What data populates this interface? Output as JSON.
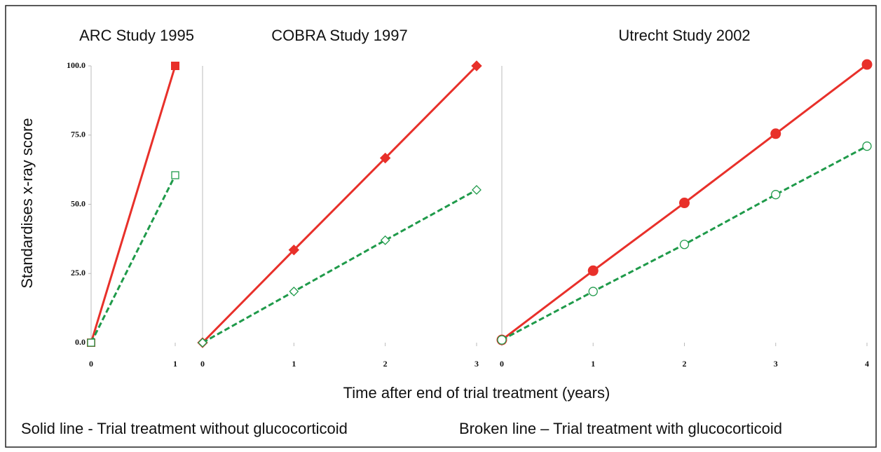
{
  "ylabel": "Standardises x-ray score",
  "xlabel": "Time after end of trial treatment (years)",
  "notes": [
    "Solid line - Trial treatment without glucocorticoid",
    "Broken line – Trial treatment with glucocorticoid"
  ],
  "chart_data": [
    {
      "type": "line",
      "title": "ARC Study 1995",
      "marker": "square",
      "x": [
        0,
        1
      ],
      "xlim": [
        0,
        1
      ],
      "xticks": [
        0,
        1
      ],
      "ylim": [
        0,
        100
      ],
      "yticks": [
        {
          "value": 0,
          "label": "0.0"
        },
        {
          "value": 25,
          "label": "25.0"
        },
        {
          "value": 50,
          "label": "50.0"
        },
        {
          "value": 75,
          "label": "75.0"
        },
        {
          "value": 100,
          "label": "100.0"
        }
      ],
      "series": [
        {
          "color": "#e8302a",
          "dashed": false,
          "values": [
            0,
            100
          ]
        },
        {
          "color": "#1f9a4a",
          "dashed": true,
          "values": [
            0,
            60.5
          ]
        }
      ]
    },
    {
      "type": "line",
      "title": "COBRA Study 1997",
      "marker": "diamond",
      "x": [
        0,
        1,
        2,
        3
      ],
      "xlim": [
        0,
        3
      ],
      "xticks": [
        0,
        1,
        2,
        3
      ],
      "ylim": [
        0,
        100
      ],
      "series": [
        {
          "color": "#e8302a",
          "dashed": false,
          "values": [
            0,
            33.5,
            66.7,
            100
          ]
        },
        {
          "color": "#1f9a4a",
          "dashed": true,
          "values": [
            0,
            18.5,
            37,
            55.2
          ]
        }
      ]
    },
    {
      "type": "line",
      "title": "Utrecht Study 2002",
      "marker": "circle",
      "x": [
        0,
        1,
        2,
        3,
        4
      ],
      "xlim": [
        0,
        4
      ],
      "xticks": [
        0,
        1,
        2,
        3,
        4
      ],
      "ylim": [
        0,
        100
      ],
      "series": [
        {
          "color": "#e8302a",
          "dashed": false,
          "values": [
            1,
            26,
            50.5,
            75.5,
            100.5
          ]
        },
        {
          "color": "#1f9a4a",
          "dashed": true,
          "values": [
            1,
            18.5,
            35.5,
            53.5,
            71
          ]
        }
      ]
    }
  ]
}
